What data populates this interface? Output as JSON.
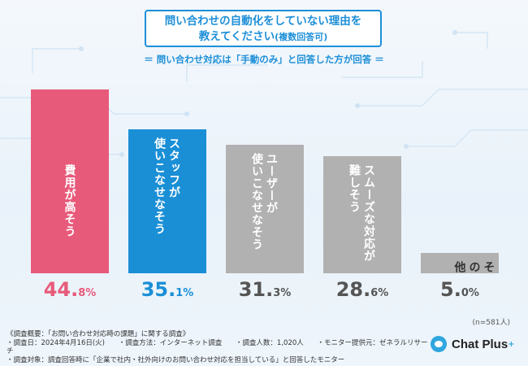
{
  "title": {
    "line1": "問い合わせの自動化をしていない理由を",
    "line2": "教えてください",
    "line2_suffix": "(複数回答可)"
  },
  "subtitle": "＝ 問い合わせ対応は「手動のみ」と回答した方が回答 ＝",
  "chart_data": {
    "type": "bar",
    "title": "問い合わせの自動化をしていない理由を教えてください(複数回答可)",
    "categories": [
      "費用が高そう",
      "スタッフが使いこなせなそう",
      "ユーザーが使いこなせなそう",
      "スムーズな対応が難しそう",
      "その他"
    ],
    "label_columns": [
      [
        "費用が高そう"
      ],
      [
        "スタッフが",
        "使いこなせなそう"
      ],
      [
        "ユーザーが",
        "使いこなせなそう"
      ],
      [
        "スムーズな対応が",
        "難しそう"
      ],
      [
        "その他"
      ]
    ],
    "values": [
      44.8,
      35.1,
      31.3,
      28.6,
      5.0
    ],
    "value_labels": [
      [
        "44.",
        "8%"
      ],
      [
        "35.",
        "1%"
      ],
      [
        "31.",
        "3%"
      ],
      [
        "28.",
        "6%"
      ],
      [
        "5.",
        "0%"
      ]
    ],
    "colors": [
      "#e85a7a",
      "#1a8fd6",
      "#b1b1b1",
      "#b1b1b1",
      "#b1b1b1"
    ],
    "label_colors": [
      "#ffffff",
      "#ffffff",
      "#ffffff",
      "#ffffff",
      "#333333"
    ],
    "ylim": [
      0,
      50
    ],
    "xlabel": "",
    "ylabel": "",
    "note": "(n=581人)"
  },
  "footer": {
    "line1": "《調査概要：「お問い合わせ対応時の課題」に関する調査》",
    "line2": [
      "・調査日：2024年4月16日(火)",
      "・調査方法：インターネット調査",
      "・調査人数：1,020人",
      "・モニター提供元：ゼネラルリサーチ"
    ],
    "line3": "・調査対象：調査回答時に「企業で社内・社外向けのお問い合わせ対応を担当している」と回答したモニター"
  },
  "logo": {
    "name": "Chat Plus",
    "plus": "+"
  }
}
